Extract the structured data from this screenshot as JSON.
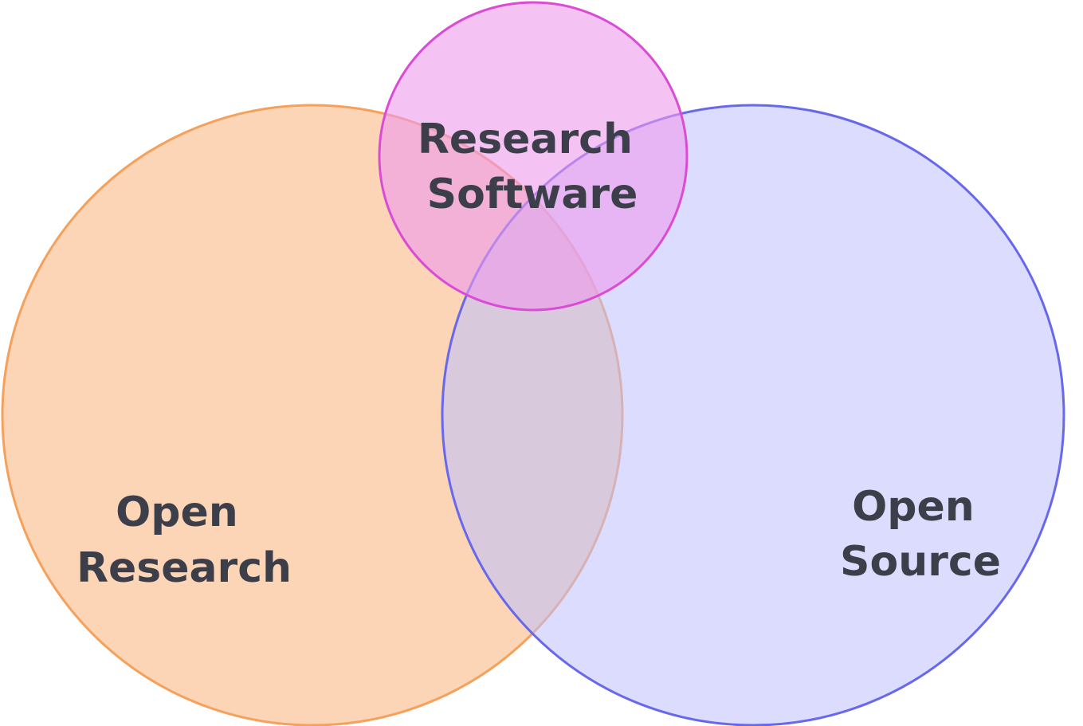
{
  "diagram": {
    "sets": [
      {
        "id": "open-research",
        "lines": [
          "Open",
          "Research"
        ],
        "fill": "#fbd5b6",
        "stroke": "#f5a15c"
      },
      {
        "id": "open-source",
        "lines": [
          "Open",
          "Source"
        ],
        "fill": "#bdbffd",
        "stroke": "#6868ec"
      },
      {
        "id": "research-software",
        "lines": [
          "Research",
          "Software"
        ],
        "fill": "#ee99ec",
        "stroke": "#da4bd6"
      }
    ],
    "text_color": "#3c3f4a"
  }
}
